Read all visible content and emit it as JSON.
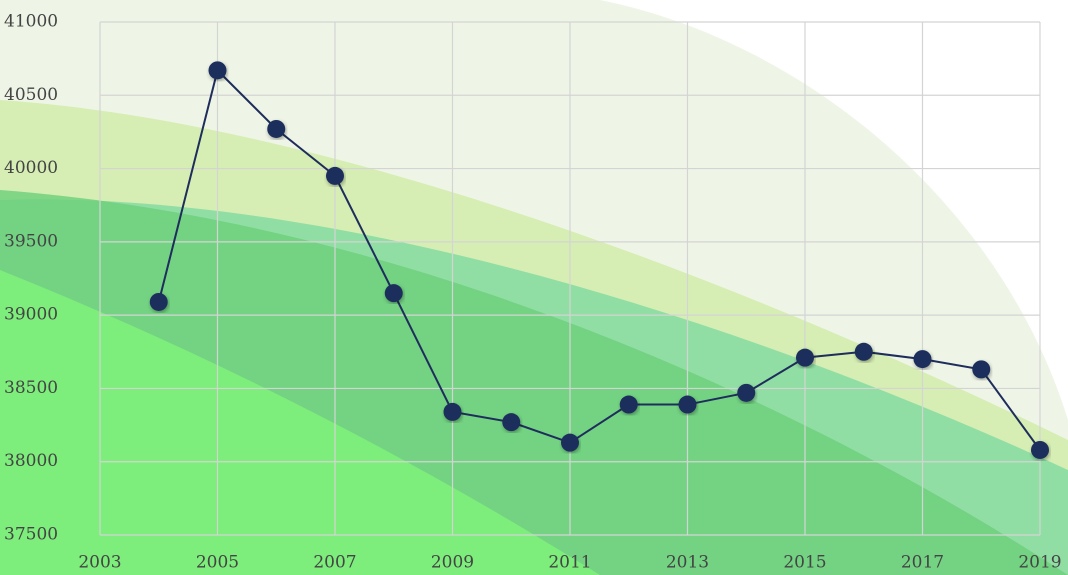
{
  "chart_data": {
    "type": "line",
    "x": [
      2004,
      2005,
      2006,
      2007,
      2008,
      2009,
      2010,
      2011,
      2012,
      2013,
      2014,
      2015,
      2016,
      2017,
      2018,
      2019
    ],
    "series": [
      {
        "color": "#1f2d5c",
        "values": [
          39090,
          40670,
          40270,
          39950,
          39150,
          38340,
          38270,
          38130,
          38390,
          38390,
          38470,
          38710,
          38750,
          38700,
          38630,
          38080
        ]
      }
    ],
    "xlim": [
      2003,
      2019
    ],
    "xticks": [
      2003,
      2005,
      2007,
      2009,
      2011,
      2013,
      2015,
      2017,
      2019
    ],
    "ylim": [
      37500,
      41000
    ],
    "yticks": [
      37500,
      38000,
      38500,
      39000,
      39500,
      40000,
      40500,
      41000
    ],
    "grid": true
  }
}
